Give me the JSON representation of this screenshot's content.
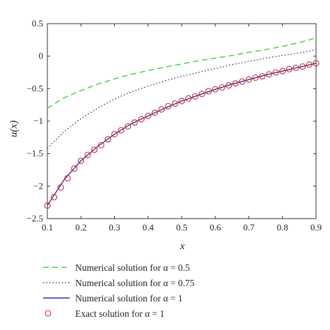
{
  "chart_data": {
    "type": "line",
    "xlabel": "x",
    "ylabel": "u(x)",
    "xlim": [
      0.1,
      0.9
    ],
    "ylim": [
      -2.5,
      0.5
    ],
    "grid": false,
    "legend_position": "bottom",
    "x_ticks": [
      "0.1",
      "0.2",
      "0.3",
      "0.4",
      "0.5",
      "0.6",
      "0.7",
      "0.8",
      "0.9"
    ],
    "y_ticks": [
      "0.5",
      "0",
      "−0.5",
      "−1",
      "−1.5",
      "−2",
      "−2.5"
    ],
    "x_tick_values": [
      0.1,
      0.2,
      0.3,
      0.4,
      0.5,
      0.6,
      0.7,
      0.8,
      0.9
    ],
    "y_tick_values": [
      0.5,
      0,
      -0.5,
      -1,
      -1.5,
      -2,
      -2.5
    ],
    "x": [
      0.1,
      0.15,
      0.2,
      0.25,
      0.3,
      0.35,
      0.4,
      0.45,
      0.5,
      0.55,
      0.6,
      0.65,
      0.7,
      0.75,
      0.8,
      0.85,
      0.9
    ],
    "series": [
      {
        "name": "Numerical solution for α = 0.5",
        "style": "dashed",
        "color": "#3ecf3e",
        "values": [
          -0.8,
          -0.64,
          -0.53,
          -0.43,
          -0.35,
          -0.28,
          -0.22,
          -0.17,
          -0.12,
          -0.07,
          -0.03,
          0.01,
          0.06,
          0.1,
          0.15,
          0.21,
          0.28
        ]
      },
      {
        "name": "Numerical solution for α = 0.75",
        "style": "dotted",
        "color": "#222222",
        "values": [
          -1.42,
          -1.16,
          -0.96,
          -0.8,
          -0.66,
          -0.55,
          -0.46,
          -0.38,
          -0.31,
          -0.25,
          -0.19,
          -0.13,
          -0.08,
          -0.03,
          0.01,
          0.05,
          0.1
        ]
      },
      {
        "name": "Numerical solution for α = 1",
        "style": "solid",
        "color": "#2f2f9e",
        "values": [
          -2.3,
          -1.9,
          -1.61,
          -1.39,
          -1.2,
          -1.04,
          -0.92,
          -0.8,
          -0.69,
          -0.6,
          -0.51,
          -0.43,
          -0.36,
          -0.29,
          -0.23,
          -0.17,
          -0.11
        ]
      }
    ],
    "exact": {
      "name": "Exact solution for α = 1",
      "color": "#cc2a2a",
      "x": [
        0.1,
        0.12,
        0.14,
        0.16,
        0.18,
        0.2,
        0.22,
        0.24,
        0.26,
        0.28,
        0.3,
        0.32,
        0.34,
        0.36,
        0.38,
        0.4,
        0.42,
        0.44,
        0.46,
        0.48,
        0.5,
        0.52,
        0.54,
        0.56,
        0.58,
        0.6,
        0.62,
        0.64,
        0.66,
        0.68,
        0.7,
        0.72,
        0.74,
        0.76,
        0.78,
        0.8,
        0.82,
        0.84,
        0.86,
        0.88,
        0.9
      ],
      "values": [
        -2.3,
        -2.17,
        -2.02,
        -1.88,
        -1.73,
        -1.61,
        -1.52,
        -1.44,
        -1.37,
        -1.28,
        -1.2,
        -1.14,
        -1.08,
        -1.02,
        -0.97,
        -0.92,
        -0.87,
        -0.82,
        -0.77,
        -0.73,
        -0.69,
        -0.65,
        -0.62,
        -0.58,
        -0.54,
        -0.51,
        -0.48,
        -0.45,
        -0.42,
        -0.39,
        -0.36,
        -0.33,
        -0.31,
        -0.28,
        -0.25,
        -0.23,
        -0.2,
        -0.18,
        -0.16,
        -0.13,
        -0.11
      ]
    }
  }
}
